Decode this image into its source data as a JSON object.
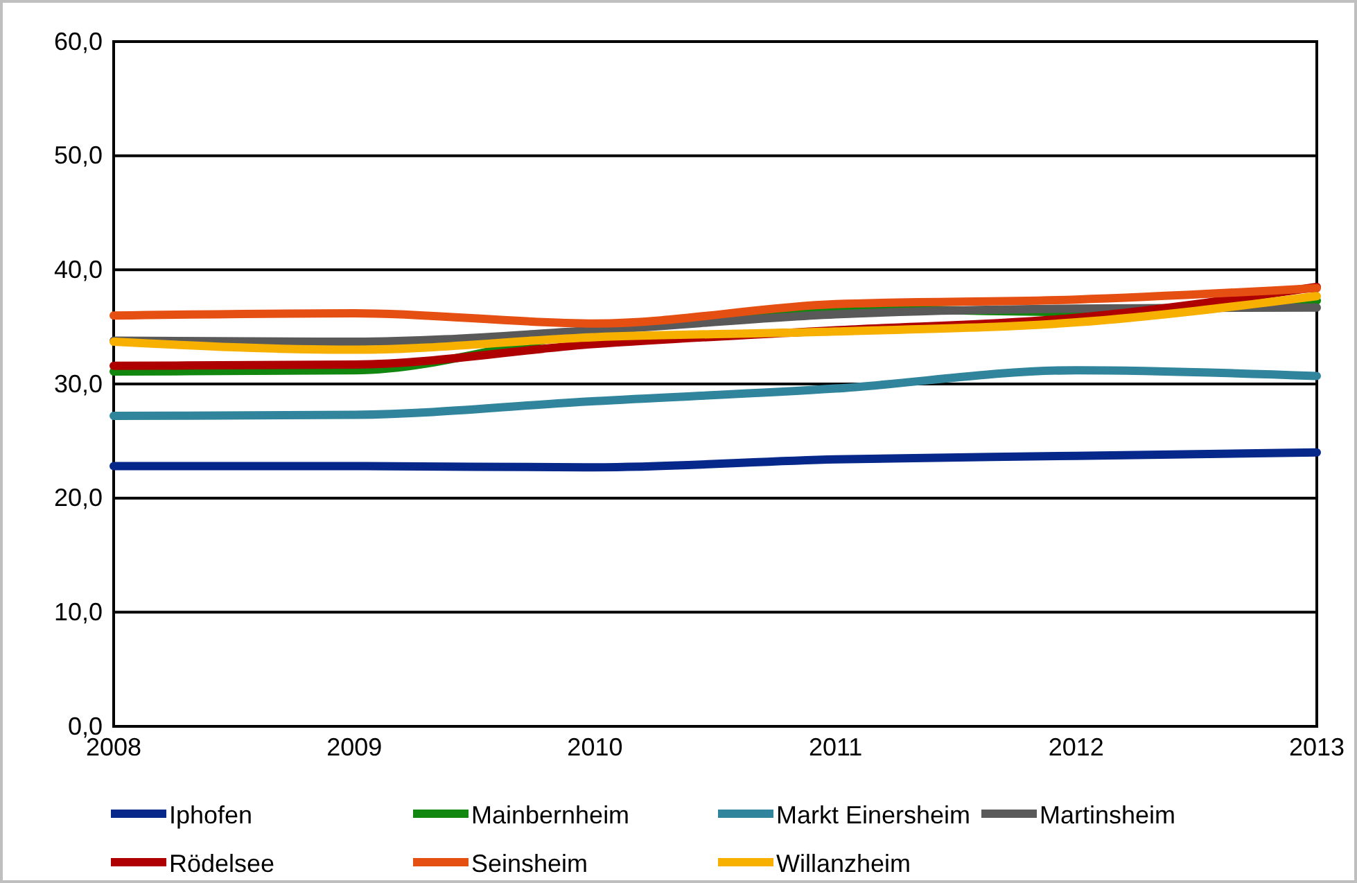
{
  "chart_data": {
    "type": "line",
    "x": [
      2008,
      2009,
      2010,
      2011,
      2012,
      2013
    ],
    "xlim": [
      2008,
      2013
    ],
    "xticks": [
      2008,
      2009,
      2010,
      2011,
      2012,
      2013
    ],
    "ylim": [
      0,
      60
    ],
    "yticks": [
      {
        "value": 0,
        "label": "0,0"
      },
      {
        "value": 10,
        "label": "10,0"
      },
      {
        "value": 20,
        "label": "20,0"
      },
      {
        "value": 30,
        "label": "30,0"
      },
      {
        "value": 40,
        "label": "40,0"
      },
      {
        "value": 50,
        "label": "50,0"
      },
      {
        "value": 60,
        "label": "60,0"
      }
    ],
    "grid": "y",
    "legend": "bottom",
    "marker": "none",
    "line_style": "solid",
    "series": [
      {
        "name": "Iphofen",
        "color": "#06288a",
        "values": [
          22.8,
          22.8,
          22.7,
          23.4,
          23.7,
          24.0
        ]
      },
      {
        "name": "Mainbernheim",
        "color": "#12870f",
        "values": [
          31.1,
          31.2,
          34.6,
          36.6,
          36.3,
          37.3
        ]
      },
      {
        "name": "Markt Einersheim",
        "color": "#30849c",
        "values": [
          27.2,
          27.3,
          28.5,
          29.6,
          31.2,
          30.7
        ]
      },
      {
        "name": "Martinsheim",
        "color": "#595959",
        "values": [
          33.8,
          33.7,
          34.7,
          36.1,
          36.6,
          36.7
        ]
      },
      {
        "name": "Rödelsee",
        "color": "#ae0000",
        "values": [
          31.6,
          31.7,
          33.5,
          34.7,
          35.8,
          38.5
        ]
      },
      {
        "name": "Seinsheim",
        "color": "#e64f12",
        "values": [
          36.0,
          36.2,
          35.3,
          37.0,
          37.4,
          38.4
        ]
      },
      {
        "name": "Willanzheim",
        "color": "#f7b000",
        "values": [
          33.7,
          33.0,
          34.1,
          34.6,
          35.4,
          37.7
        ]
      }
    ]
  }
}
